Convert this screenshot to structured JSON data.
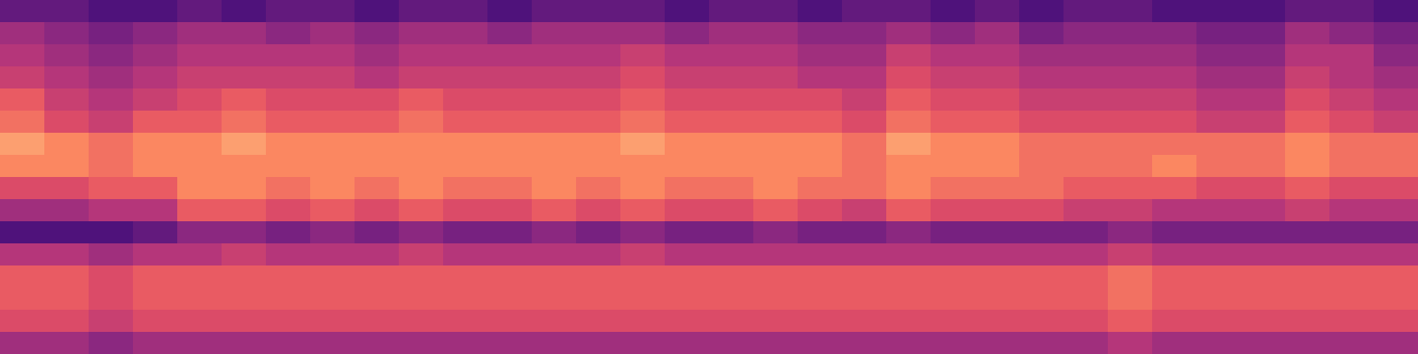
{
  "chart_data": {
    "type": "heatmap",
    "color": "magma",
    "tick_labels": false,
    "zlim": [
      0,
      10
    ],
    "cells": [
      [
        3,
        3,
        2.5,
        2.5,
        3,
        2.5,
        3,
        3,
        2.5,
        3,
        3,
        2.5,
        3,
        3,
        3,
        2.5,
        3,
        3,
        2.5,
        3,
        3,
        2.5,
        3,
        2.5,
        3,
        3,
        2.5,
        2.5,
        2.5,
        3,
        3,
        2.5
      ],
      [
        4.5,
        4,
        3.5,
        4,
        4.5,
        4.5,
        4,
        4.5,
        4,
        4.5,
        4.5,
        4,
        4.5,
        4.5,
        4.5,
        4,
        4.5,
        4.5,
        4,
        4,
        4.5,
        4,
        4.5,
        3.5,
        4,
        4,
        4,
        3.5,
        3.5,
        4.5,
        4,
        3.5
      ],
      [
        5,
        4.5,
        4,
        4.5,
        5,
        5,
        5,
        5,
        4.5,
        5,
        5,
        5,
        5,
        5,
        5.5,
        5,
        5,
        5,
        4.5,
        4.5,
        5.5,
        5,
        5,
        4.5,
        4.5,
        4.5,
        4.5,
        4,
        4,
        5,
        5,
        4
      ],
      [
        5.5,
        5,
        4.5,
        5,
        5.5,
        5.5,
        5.5,
        5.5,
        5,
        5.5,
        5.5,
        5.5,
        5.5,
        5.5,
        6,
        5.5,
        5.5,
        5.5,
        5,
        5,
        6,
        5.5,
        5.5,
        5,
        5,
        5,
        5,
        4.5,
        4.5,
        5.5,
        5,
        4.5
      ],
      [
        6.5,
        5.5,
        5,
        5.5,
        6,
        6.5,
        6,
        6,
        6,
        6.5,
        6,
        6,
        6,
        6,
        6.5,
        6,
        6,
        6,
        6,
        5.5,
        6.5,
        6,
        6,
        5.5,
        5.5,
        5.5,
        5.5,
        5,
        5,
        6,
        5.5,
        5
      ],
      [
        7,
        6,
        5.5,
        6.5,
        6.5,
        7,
        6.5,
        6.5,
        6.5,
        7,
        6.5,
        6.5,
        6.5,
        6.5,
        7,
        6.5,
        6.5,
        6.5,
        6.5,
        6,
        7,
        6.5,
        6.5,
        6,
        6,
        6,
        6,
        5.5,
        5.5,
        6.5,
        6,
        5.5
      ],
      [
        8,
        7.5,
        7,
        7.5,
        7.5,
        8,
        7.5,
        7.5,
        7.5,
        7.5,
        7.5,
        7.5,
        7.5,
        7.5,
        8,
        7.5,
        7.5,
        7.5,
        7.5,
        7,
        8,
        7.5,
        7.5,
        7,
        7,
        7,
        7,
        7,
        7,
        7.5,
        7,
        7
      ],
      [
        7.5,
        7.5,
        7,
        7.5,
        7.5,
        7.5,
        7.5,
        7.5,
        7.5,
        7.5,
        7.5,
        7.5,
        7.5,
        7.5,
        7.5,
        7.5,
        7.5,
        7.5,
        7.5,
        7,
        7.5,
        7.5,
        7.5,
        7,
        7,
        7,
        7.5,
        7,
        7,
        7.5,
        7,
        7
      ],
      [
        6,
        6,
        6.5,
        6.5,
        7.5,
        7.5,
        7,
        7.5,
        7,
        7.5,
        7,
        7,
        7.5,
        7,
        7.5,
        7,
        7,
        7.5,
        7,
        7,
        7.5,
        7,
        7,
        7,
        6.5,
        6.5,
        6.5,
        6,
        6,
        6.5,
        6,
        6
      ],
      [
        4.5,
        4.5,
        5,
        5,
        6.5,
        6.5,
        6,
        6.5,
        6,
        6.5,
        6,
        6,
        6.5,
        6,
        6.5,
        6,
        6,
        6.5,
        6,
        5.5,
        6.5,
        6,
        6,
        6,
        5.5,
        5.5,
        5,
        5,
        5,
        5.5,
        5,
        5
      ],
      [
        2.5,
        2.5,
        2.5,
        3,
        4,
        4,
        3.5,
        4,
        3.5,
        4,
        3.5,
        3.5,
        4,
        3.5,
        4,
        3.5,
        3.5,
        4,
        3.5,
        3.5,
        4,
        3.5,
        3.5,
        3.5,
        3.5,
        4,
        3.5,
        3.5,
        3.5,
        3.5,
        3.5,
        3.5
      ],
      [
        5,
        5,
        4.5,
        5,
        5,
        5.5,
        5,
        5,
        5,
        5.5,
        5,
        5,
        5,
        5,
        5.5,
        5,
        5,
        5,
        5,
        5,
        5,
        5,
        5,
        5,
        5,
        5.5,
        5,
        5,
        5,
        5,
        5,
        5
      ],
      [
        6.5,
        6.5,
        6,
        6.5,
        6.5,
        6.5,
        6.5,
        6.5,
        6.5,
        6.5,
        6.5,
        6.5,
        6.5,
        6.5,
        6.5,
        6.5,
        6.5,
        6.5,
        6.5,
        6.5,
        6.5,
        6.5,
        6.5,
        6.5,
        6.5,
        7,
        6.5,
        6.5,
        6.5,
        6.5,
        6.5,
        6.5
      ],
      [
        6.5,
        6.5,
        6,
        6.5,
        6.5,
        6.5,
        6.5,
        6.5,
        6.5,
        6.5,
        6.5,
        6.5,
        6.5,
        6.5,
        6.5,
        6.5,
        6.5,
        6.5,
        6.5,
        6.5,
        6.5,
        6.5,
        6.5,
        6.5,
        6.5,
        7,
        6.5,
        6.5,
        6.5,
        6.5,
        6.5,
        6.5
      ],
      [
        6,
        6,
        5.5,
        6,
        6,
        6,
        6,
        6,
        6,
        6,
        6,
        6,
        6,
        6,
        6,
        6,
        6,
        6,
        6,
        6,
        6,
        6,
        6,
        6,
        6,
        6.5,
        6,
        6,
        6,
        6,
        6,
        6
      ],
      [
        4.5,
        4.5,
        4,
        4.5,
        4.5,
        4.5,
        4.5,
        4.5,
        4.5,
        4.5,
        4.5,
        4.5,
        4.5,
        4.5,
        4.5,
        4.5,
        4.5,
        4.5,
        4.5,
        4.5,
        4.5,
        4.5,
        4.5,
        4.5,
        4.5,
        5,
        4.5,
        4.5,
        4.5,
        4.5,
        4.5,
        4.5
      ]
    ]
  }
}
